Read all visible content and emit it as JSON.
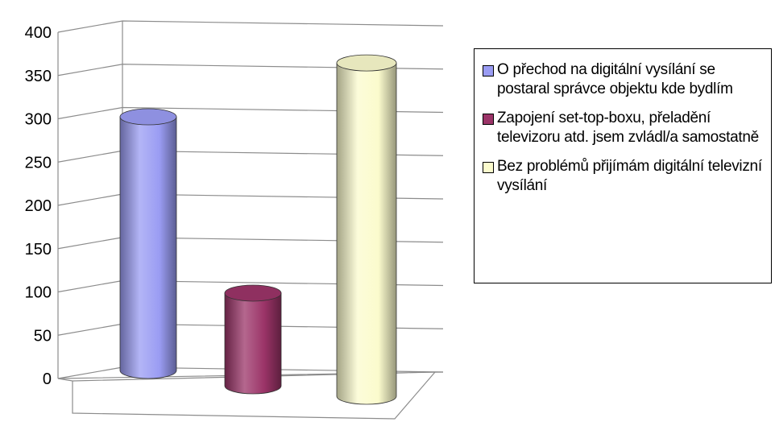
{
  "chart_data": {
    "type": "bar",
    "style": "3d-cylinder",
    "categories": [
      "O přechod na digitální vysílání se postaral správce objektu kde bydlím",
      "Zapojení set-top-boxu, přeladění televizoru atd. jsem zvládl/a samostatně",
      "Bez problémů přijímám digitální televizní vysílání"
    ],
    "values": [
      293,
      107,
      385
    ],
    "colors": [
      "#9a9cf3",
      "#9b3468",
      "#fbfbcd"
    ],
    "yticks": [
      "0",
      "50",
      "100",
      "150",
      "200",
      "250",
      "300",
      "350",
      "400"
    ],
    "ylim": [
      0,
      400
    ],
    "grid": true,
    "legend_position": "right"
  }
}
